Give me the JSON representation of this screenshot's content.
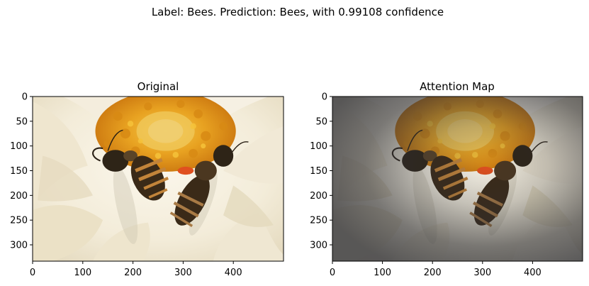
{
  "figure": {
    "suptitle": "Label: Bees. Prediction: Bees, with 0.99108 confidence"
  },
  "chart_data": [
    {
      "type": "image",
      "title": "Original",
      "image_content": "photo of bees on a white and orange dahlia flower",
      "xlim": [
        0,
        500
      ],
      "ylim": [
        333,
        0
      ],
      "x_ticks": [
        0,
        100,
        200,
        300,
        400
      ],
      "y_ticks": [
        0,
        50,
        100,
        150,
        200,
        250,
        300
      ],
      "attention_overlay": false
    },
    {
      "type": "image",
      "title": "Attention Map",
      "image_content": "same photo darkened by an attention overlay, brightest on the bees",
      "xlim": [
        0,
        500
      ],
      "ylim": [
        333,
        0
      ],
      "x_ticks": [
        0,
        100,
        200,
        300,
        400
      ],
      "y_ticks": [
        0,
        50,
        100,
        150,
        200,
        250,
        300
      ],
      "attention_overlay": true
    }
  ],
  "colors": {
    "petal_light": "#f6f1e2",
    "petal_shadow": "#d9cfb2",
    "flower_center": "#e69a1a",
    "bee_body": "#3a2a18",
    "bee_stripe": "#c2843a",
    "pollen": "#e0501f",
    "attention_dark": "#2f3036"
  }
}
